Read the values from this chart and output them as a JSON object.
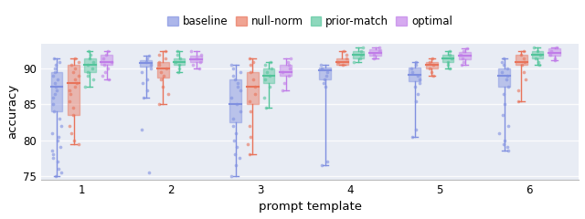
{
  "xlabel": "prompt template",
  "ylabel": "accuracy",
  "ylim": [
    74.5,
    93.5
  ],
  "xticks": [
    1,
    2,
    3,
    4,
    5,
    6
  ],
  "background_color": "#e8ecf4",
  "figure_background": "#ffffff",
  "legend_labels": [
    "baseline",
    "null-norm",
    "prior-match",
    "optimal"
  ],
  "colors": {
    "baseline": "#8090e0",
    "null_norm": "#e8735a",
    "prior_match": "#52c49a",
    "optimal": "#c07de8"
  },
  "box_width": 0.13,
  "offsets": [
    -0.28,
    -0.09,
    0.09,
    0.28
  ],
  "groups": {
    "1": {
      "baseline": {
        "med": 87.5,
        "q1": 84.0,
        "q3": 89.5,
        "whislo": 75.0,
        "whishi": 91.5
      },
      "null_norm": {
        "med": 88.0,
        "q1": 83.5,
        "q3": 90.5,
        "whislo": 79.5,
        "whishi": 91.5
      },
      "prior_match": {
        "med": 90.5,
        "q1": 89.5,
        "q3": 91.5,
        "whislo": 87.5,
        "whishi": 92.5
      },
      "optimal": {
        "med": 91.0,
        "q1": 90.5,
        "q3": 92.0,
        "whislo": 88.5,
        "whishi": 92.5
      }
    },
    "2": {
      "baseline": {
        "med": 90.8,
        "q1": 90.3,
        "q3": 91.2,
        "whislo": 86.0,
        "whishi": 91.8
      },
      "null_norm": {
        "med": 90.0,
        "q1": 88.8,
        "q3": 91.0,
        "whislo": 85.0,
        "whishi": 92.5
      },
      "prior_match": {
        "med": 91.0,
        "q1": 90.5,
        "q3": 91.5,
        "whislo": 89.5,
        "whishi": 92.5
      },
      "optimal": {
        "med": 91.3,
        "q1": 90.9,
        "q3": 91.8,
        "whislo": 90.0,
        "whishi": 92.5
      }
    },
    "3": {
      "baseline": {
        "med": 85.0,
        "q1": 82.5,
        "q3": 88.5,
        "whislo": 75.0,
        "whishi": 90.5
      },
      "null_norm": {
        "med": 87.5,
        "q1": 85.0,
        "q3": 89.5,
        "whislo": 78.0,
        "whishi": 91.5
      },
      "prior_match": {
        "med": 89.0,
        "q1": 88.0,
        "q3": 90.0,
        "whislo": 84.5,
        "whishi": 91.0
      },
      "optimal": {
        "med": 89.5,
        "q1": 89.0,
        "q3": 90.5,
        "whislo": 87.0,
        "whishi": 91.5
      }
    },
    "4": {
      "baseline": {
        "med": 89.8,
        "q1": 88.5,
        "q3": 90.2,
        "whislo": 76.5,
        "whishi": 90.5
      },
      "null_norm": {
        "med": 91.0,
        "q1": 90.5,
        "q3": 91.5,
        "whislo": 90.5,
        "whishi": 92.5
      },
      "prior_match": {
        "med": 92.0,
        "q1": 91.5,
        "q3": 92.5,
        "whislo": 91.0,
        "whishi": 93.0
      },
      "optimal": {
        "med": 92.2,
        "q1": 91.8,
        "q3": 92.7,
        "whislo": 91.5,
        "whishi": 93.0
      }
    },
    "5": {
      "baseline": {
        "med": 89.2,
        "q1": 88.2,
        "q3": 90.2,
        "whislo": 80.5,
        "whishi": 91.0
      },
      "null_norm": {
        "med": 90.5,
        "q1": 90.0,
        "q3": 91.0,
        "whislo": 89.0,
        "whishi": 91.5
      },
      "prior_match": {
        "med": 91.5,
        "q1": 91.0,
        "q3": 92.0,
        "whislo": 90.0,
        "whishi": 92.5
      },
      "optimal": {
        "med": 91.8,
        "q1": 91.3,
        "q3": 92.3,
        "whislo": 90.5,
        "whishi": 92.8
      }
    },
    "6": {
      "baseline": {
        "med": 89.0,
        "q1": 87.5,
        "q3": 90.0,
        "whislo": 78.5,
        "whishi": 91.5
      },
      "null_norm": {
        "med": 91.0,
        "q1": 90.5,
        "q3": 92.0,
        "whislo": 85.5,
        "whishi": 92.5
      },
      "prior_match": {
        "med": 92.0,
        "q1": 91.5,
        "q3": 92.5,
        "whislo": 90.5,
        "whishi": 93.0
      },
      "optimal": {
        "med": 92.2,
        "q1": 91.8,
        "q3": 92.8,
        "whislo": 91.2,
        "whishi": 93.0
      }
    }
  },
  "scatter_data": {
    "1": {
      "baseline": [
        75.0,
        75.5,
        76.0,
        77.0,
        77.5,
        78.0,
        78.5,
        79.0,
        80.0,
        80.5,
        81.0,
        82.0,
        83.0,
        84.0,
        85.0,
        86.0,
        86.5,
        87.0,
        87.5,
        88.0,
        88.5,
        89.0,
        89.5,
        90.0,
        90.5,
        91.0,
        91.5
      ],
      "null_norm": [
        79.5,
        80.0,
        81.0,
        82.0,
        83.5,
        84.5,
        85.5,
        86.5,
        87.0,
        87.5,
        88.0,
        88.5,
        89.0,
        89.5,
        90.0,
        90.5,
        91.0,
        91.5
      ],
      "prior_match": [
        87.5,
        88.5,
        89.0,
        89.5,
        90.0,
        90.5,
        91.0,
        91.5,
        92.0,
        92.5
      ],
      "optimal": [
        88.5,
        89.0,
        89.5,
        90.0,
        90.5,
        91.0,
        91.5,
        92.0,
        92.5
      ]
    },
    "2": {
      "baseline": [
        75.5,
        81.5,
        86.0,
        87.0,
        88.0,
        88.5,
        89.5,
        90.0,
        90.5,
        91.0,
        91.5,
        91.8
      ],
      "null_norm": [
        85.0,
        86.5,
        87.5,
        88.5,
        89.0,
        89.5,
        90.0,
        90.5,
        91.0,
        91.5,
        92.0,
        92.5
      ],
      "prior_match": [
        89.5,
        90.0,
        90.5,
        91.0,
        91.5,
        92.0,
        92.5
      ],
      "optimal": [
        90.0,
        90.5,
        91.0,
        91.5,
        92.0,
        92.5
      ]
    },
    "3": {
      "baseline": [
        75.0,
        76.5,
        77.5,
        78.0,
        79.0,
        80.0,
        81.0,
        82.0,
        83.0,
        84.0,
        85.0,
        86.0,
        87.0,
        87.5,
        88.0,
        88.5,
        89.0,
        89.5,
        90.0,
        90.5
      ],
      "null_norm": [
        78.0,
        79.5,
        80.5,
        82.0,
        84.0,
        85.5,
        86.5,
        87.5,
        88.5,
        89.5,
        90.5,
        91.0,
        91.5
      ],
      "prior_match": [
        84.5,
        86.0,
        87.5,
        88.5,
        89.0,
        89.5,
        90.0,
        90.5,
        91.0
      ],
      "optimal": [
        87.0,
        88.0,
        89.0,
        89.5,
        90.0,
        90.5,
        91.0,
        91.5
      ]
    },
    "4": {
      "baseline": [
        76.5,
        77.0,
        87.5,
        88.0,
        88.5,
        89.0,
        89.5,
        90.0,
        90.5
      ],
      "null_norm": [
        90.5,
        91.0,
        91.5,
        92.0,
        92.5
      ],
      "prior_match": [
        91.0,
        91.5,
        92.0,
        92.5,
        93.0
      ],
      "optimal": [
        91.5,
        92.0,
        92.5,
        93.0
      ]
    },
    "5": {
      "baseline": [
        80.5,
        81.5,
        85.5,
        86.5,
        87.5,
        88.0,
        88.5,
        89.0,
        89.5,
        90.0,
        90.5,
        91.0
      ],
      "null_norm": [
        89.0,
        89.5,
        90.0,
        90.5,
        91.0,
        91.5
      ],
      "prior_match": [
        90.0,
        90.5,
        91.0,
        91.5,
        92.0,
        92.5
      ],
      "optimal": [
        90.5,
        91.0,
        91.5,
        92.0,
        92.5,
        92.8
      ]
    },
    "6": {
      "baseline": [
        78.5,
        79.0,
        79.5,
        80.0,
        81.0,
        82.0,
        83.5,
        85.0,
        86.5,
        87.5,
        88.5,
        89.0,
        89.5,
        90.0,
        90.5,
        91.0,
        91.5
      ],
      "null_norm": [
        85.5,
        87.0,
        88.5,
        89.5,
        90.5,
        91.0,
        91.5,
        92.0,
        92.5
      ],
      "prior_match": [
        90.5,
        91.0,
        91.5,
        92.0,
        92.5,
        93.0
      ],
      "optimal": [
        91.2,
        91.5,
        92.0,
        92.5,
        93.0
      ]
    }
  }
}
